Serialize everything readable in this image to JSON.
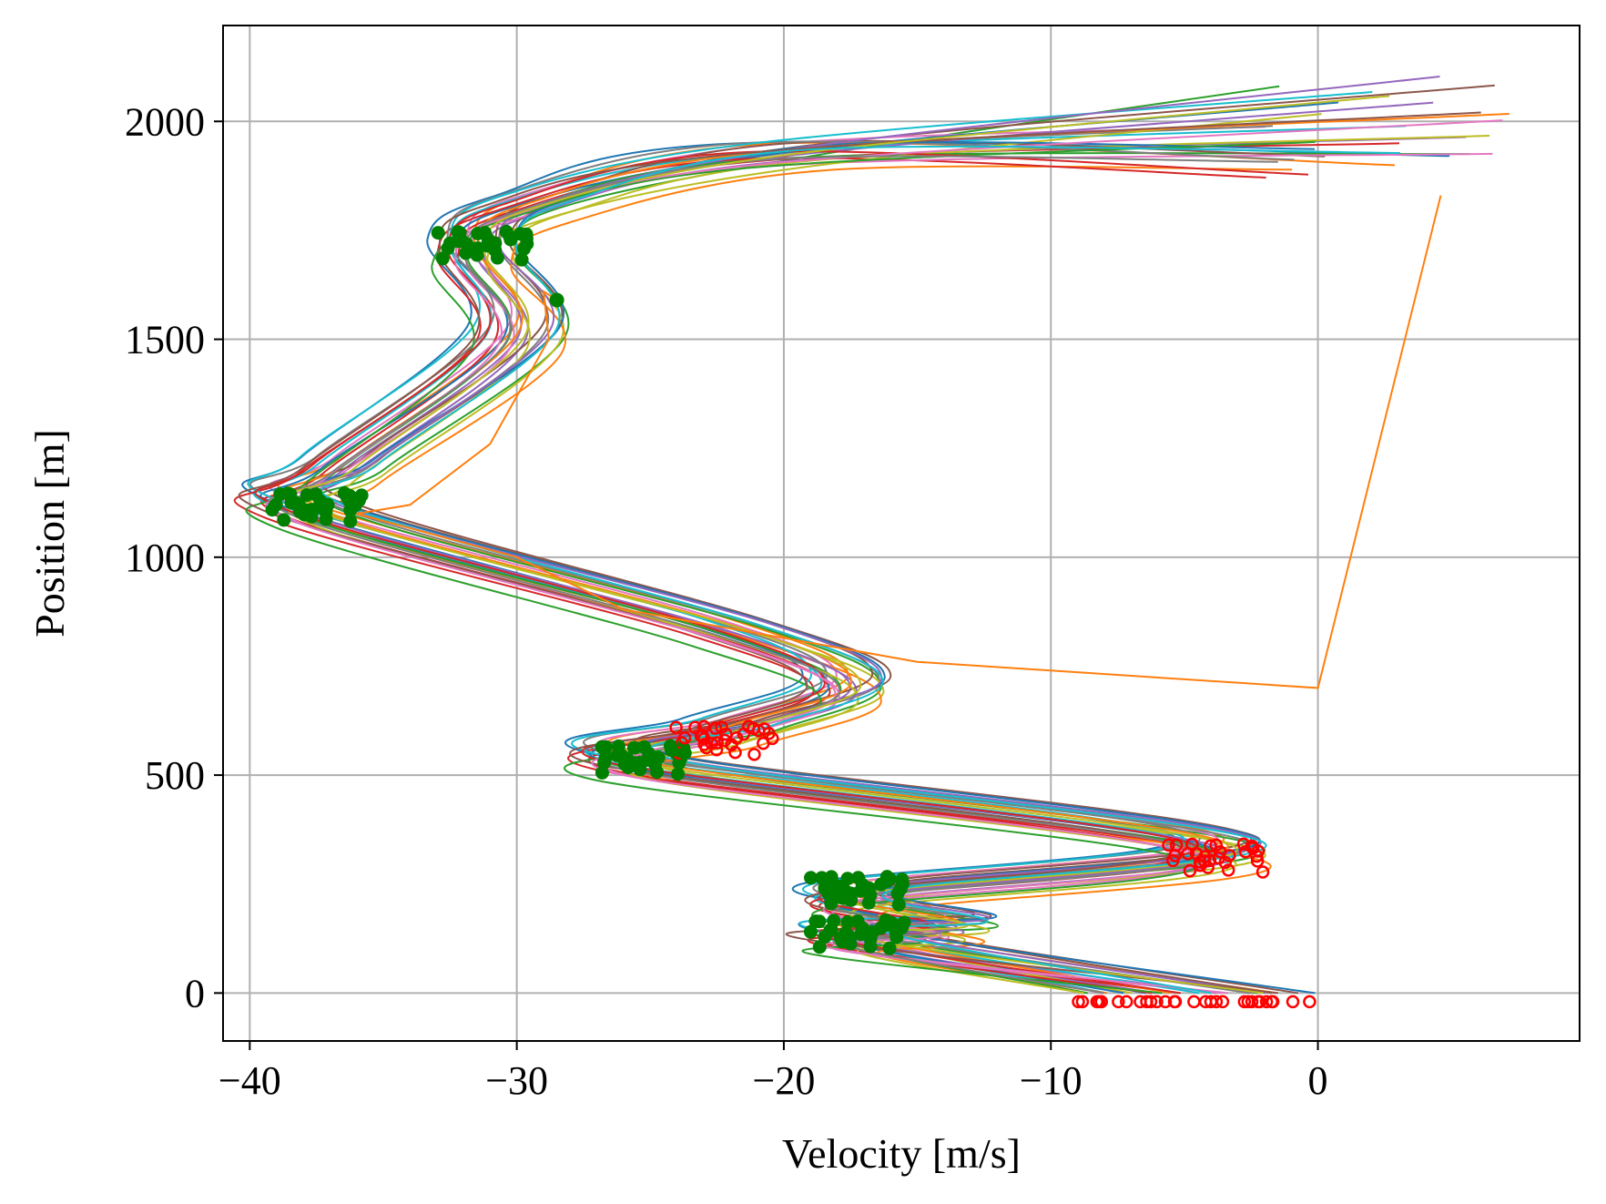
{
  "chart_data": {
    "type": "line",
    "title": "",
    "xlabel": "Velocity [m/s]",
    "ylabel": "Position [m]",
    "xlim": [
      -41,
      9.8
    ],
    "ylim": [
      -110,
      2220
    ],
    "xticks": [
      -40,
      -30,
      -20,
      -10,
      0
    ],
    "xtick_labels": [
      "−40",
      "−30",
      "−20",
      "−10",
      "0"
    ],
    "yticks": [
      0,
      500,
      1000,
      1500,
      2000
    ],
    "ytick_labels": [
      "0",
      "500",
      "1000",
      "1500",
      "2000"
    ],
    "grid": true,
    "legend": "none",
    "series_colors": [
      "#1f77b4",
      "#ff7f0e",
      "#2ca02c",
      "#d62728",
      "#9467bd",
      "#8c564b",
      "#e377c2",
      "#7f7f7f",
      "#bcbd22",
      "#17becf"
    ],
    "highlight_colors": {
      "green_markers": "#008000",
      "red_markers": "#ff0000"
    },
    "reference_trajectory": {
      "x": [
        -2.5,
        -17.5,
        -13.5,
        -17.5,
        -3.5,
        -25.5,
        -22.0,
        -17.5,
        -22.0,
        -37.8,
        -36.5,
        -30.0,
        -31.5,
        -29.5,
        -20.0,
        0.0
      ],
      "y": [
        0,
        120,
        150,
        220,
        330,
        520,
        600,
        700,
        830,
        1100,
        1200,
        1500,
        1700,
        1800,
        1920,
        1990
      ]
    },
    "ensemble_size": 30,
    "ensemble_spread": {
      "start_velocity_range": [
        -9.2,
        0.3
      ],
      "final_position_range": [
        1830,
        2110
      ],
      "final_velocity_range": [
        -2.0,
        7.5
      ]
    },
    "outlier_trajectory": {
      "x": [
        -28.5,
        -29.0,
        -28.8,
        -31.0,
        -34.0,
        -36.0,
        -30.0,
        -26.0,
        -15.0,
        0.0,
        4.6
      ],
      "y": [
        1590,
        1610,
        1500,
        1260,
        1120,
        1100,
        1000,
        880,
        760,
        700,
        1830
      ]
    }
  }
}
